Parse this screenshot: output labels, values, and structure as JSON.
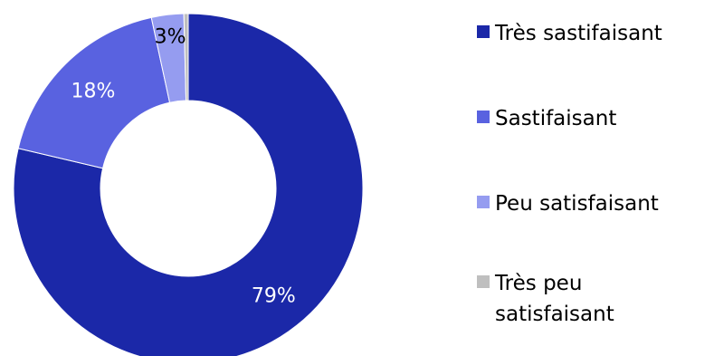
{
  "chart_data": {
    "type": "pie",
    "variant": "donut",
    "title": "",
    "categories": [
      "Très sastifaisant",
      "Sastifaisant",
      "Peu satisfaisant",
      "Très peu satisfaisant"
    ],
    "values": [
      79,
      18,
      3,
      0.4
    ],
    "data_labels": [
      "79%",
      "18%",
      "3%",
      ""
    ],
    "colors": [
      "#1b28a8",
      "#5962e0",
      "#959cf0",
      "#bfbfbf"
    ],
    "label_colors": [
      "#ffffff",
      "#ffffff",
      "#000000",
      "#000000"
    ],
    "legend_position": "right"
  }
}
